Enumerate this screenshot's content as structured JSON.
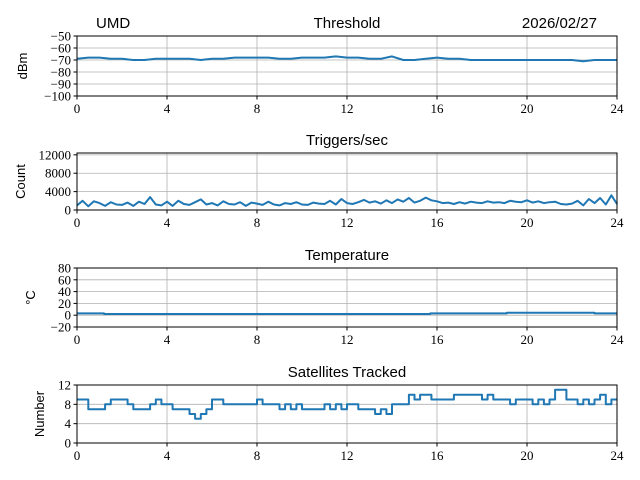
{
  "header": {
    "site": "UMD",
    "date": "2026/02/27"
  },
  "line_color": "#1f77b4",
  "chart_data": [
    {
      "type": "line",
      "title": "Threshold",
      "ylabel": "dBm",
      "xlim": [
        0,
        24
      ],
      "ylim": [
        -100,
        -50
      ],
      "xticks": [
        0,
        4,
        8,
        12,
        16,
        20,
        24
      ],
      "yticks": [
        -100,
        -90,
        -80,
        -70,
        -60,
        -50
      ],
      "grid": true,
      "step": false,
      "values": [
        -69,
        -68,
        -68,
        -69,
        -69,
        -70,
        -70,
        -69,
        -69,
        -69,
        -69,
        -70,
        -69,
        -69,
        -68,
        -68,
        -68,
        -68,
        -69,
        -69,
        -68,
        -68,
        -68,
        -67,
        -68,
        -68,
        -69,
        -69,
        -67,
        -70,
        -70,
        -69,
        -68,
        -69,
        -69,
        -70,
        -70,
        -70,
        -70,
        -70,
        -70,
        -70,
        -70,
        -70,
        -70,
        -71,
        -70,
        -70,
        -70
      ]
    },
    {
      "type": "line",
      "title": "Triggers/sec",
      "ylabel": "Count",
      "xlim": [
        0,
        24
      ],
      "ylim": [
        0,
        12400
      ],
      "xticks": [
        0,
        4,
        8,
        12,
        16,
        20,
        24
      ],
      "yticks": [
        0,
        4000,
        8000,
        12000
      ],
      "grid": true,
      "step": false,
      "values": [
        1000,
        2000,
        800,
        1900,
        1500,
        900,
        1700,
        1200,
        1100,
        1600,
        900,
        1800,
        1300,
        2800,
        1200,
        1000,
        1800,
        900,
        2000,
        1300,
        1100,
        1700,
        2300,
        1200,
        1500,
        1000,
        1900,
        1300,
        1200,
        1700,
        900,
        1600,
        1400,
        1100,
        1800,
        1200,
        1000,
        1500,
        1300,
        1700,
        1200,
        1100,
        1600,
        1400,
        1300,
        2000,
        1200,
        2400,
        1500,
        1300,
        1700,
        2200,
        1600,
        1900,
        1400,
        2100,
        1500,
        2300,
        1800,
        2600,
        1600,
        2000,
        2700,
        2100,
        1900,
        1500,
        1600,
        1300,
        1700,
        1400,
        1800,
        1600,
        1500,
        1900,
        1600,
        1700,
        1500,
        2000,
        1800,
        1700,
        2100,
        1600,
        1900,
        1500,
        1700,
        1800,
        1300,
        1200,
        1400,
        2000,
        1000,
        2400,
        1500,
        2600,
        1200,
        3200,
        1300
      ]
    },
    {
      "type": "line",
      "title": "Temperature",
      "ylabel": "°C",
      "xlim": [
        0,
        24
      ],
      "ylim": [
        -20,
        80
      ],
      "xticks": [
        0,
        4,
        8,
        12,
        16,
        20,
        24
      ],
      "yticks": [
        -20,
        0,
        20,
        40,
        60,
        80
      ],
      "grid": true,
      "step": true,
      "x": [
        0,
        1.2,
        15.7,
        19.1,
        23.0,
        24
      ],
      "y": [
        3,
        2,
        3,
        4,
        3,
        3
      ]
    },
    {
      "type": "line",
      "title": "Satellites Tracked",
      "ylabel": "Number",
      "xlim": [
        0,
        24
      ],
      "ylim": [
        0,
        12
      ],
      "xticks": [
        0,
        4,
        8,
        12,
        16,
        20,
        24
      ],
      "yticks": [
        0,
        4,
        8,
        12
      ],
      "grid": true,
      "step": true,
      "values": [
        9,
        9,
        7,
        7,
        7,
        8,
        9,
        9,
        9,
        8,
        7,
        7,
        7,
        8,
        9,
        8,
        8,
        7,
        7,
        7,
        6,
        5,
        6,
        7,
        9,
        9,
        8,
        8,
        8,
        8,
        8,
        8,
        9,
        8,
        8,
        8,
        7,
        8,
        7,
        8,
        7,
        7,
        7,
        7,
        8,
        7,
        8,
        7,
        8,
        8,
        7,
        7,
        7,
        6,
        7,
        6,
        8,
        8,
        8,
        10,
        9,
        10,
        10,
        9,
        9,
        9,
        9,
        10,
        10,
        10,
        10,
        10,
        9,
        10,
        9,
        9,
        9,
        8,
        9,
        9,
        9,
        8,
        9,
        8,
        9,
        11,
        11,
        9,
        9,
        8,
        9,
        8,
        9,
        10,
        8,
        9,
        9
      ]
    }
  ]
}
